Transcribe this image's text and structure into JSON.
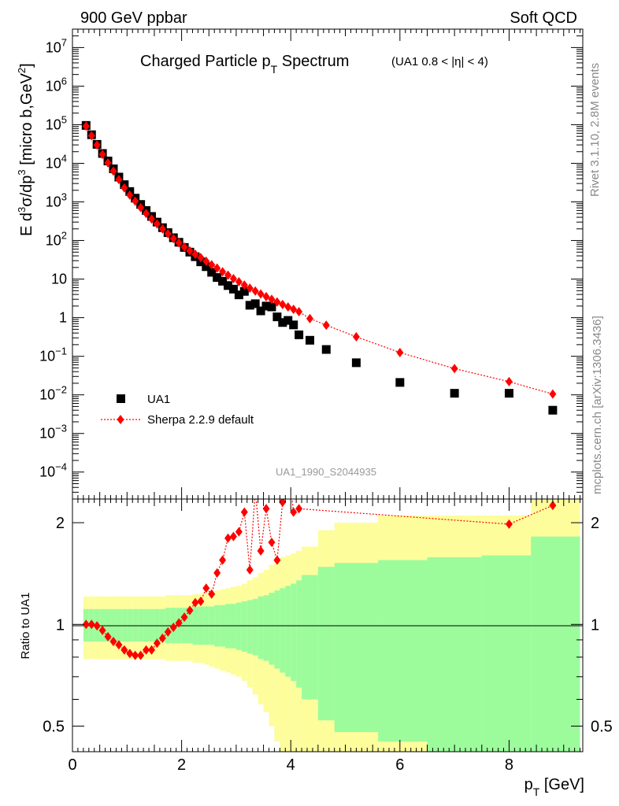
{
  "header": {
    "left": "900 GeV ppbar",
    "right": "Soft QCD"
  },
  "title": {
    "main": "Charged Particle p",
    "main_sub": "T",
    "main_tail": " Spectrum",
    "cut": "(UA1 0.8 < |η| < 4)"
  },
  "side": {
    "rivet": "Rivet 3.1.10,  2.8M events",
    "mcplots": "mcplots.cern.ch [arXiv:1306.3436]"
  },
  "watermark": "UA1_1990_S2044935",
  "legend": {
    "data": "UA1",
    "mc": "Sherpa 2.2.9 default"
  },
  "colors": {
    "data": "#000000",
    "mc": "#ff0000",
    "band_inner": "#9cfc9c",
    "band_outer": "#fdfd9c"
  },
  "chart_data": [
    {
      "type": "scatter",
      "title": "Charged Particle pT Spectrum",
      "ylabel": "E d³σ/dp³ [micro b,GeV²]",
      "yscale": "log",
      "xlim": [
        0,
        9.35
      ],
      "ylim": [
        2e-05,
        30000000.0
      ],
      "y_ticks": [
        "10⁴",
        "10³",
        "10²",
        "10¹",
        "1",
        "10",
        "10²",
        "10³",
        "10⁴",
        "10⁵",
        "10⁶",
        "10⁷"
      ],
      "legend_position": "left",
      "series": [
        {
          "name": "UA1",
          "marker": "square",
          "x": [
            0.25,
            0.35,
            0.45,
            0.55,
            0.65,
            0.75,
            0.85,
            0.95,
            1.05,
            1.15,
            1.25,
            1.35,
            1.45,
            1.55,
            1.65,
            1.75,
            1.85,
            1.95,
            2.05,
            2.15,
            2.25,
            2.35,
            2.45,
            2.55,
            2.65,
            2.75,
            2.85,
            2.95,
            3.05,
            3.15,
            3.25,
            3.35,
            3.45,
            3.55,
            3.65,
            3.75,
            3.85,
            3.95,
            4.05,
            4.15,
            4.35,
            4.65,
            5.2,
            6.0,
            7.0,
            8.0,
            8.8
          ],
          "y": [
            96000,
            55000,
            31000,
            18000,
            11500,
            7200,
            4400,
            2800,
            1860,
            1250,
            860,
            600,
            420,
            300,
            215,
            160,
            118,
            90,
            66,
            50,
            38,
            28,
            21,
            15,
            11,
            8.8,
            6.8,
            5.5,
            3.9,
            4.8,
            2.1,
            2.3,
            1.5,
            2.0,
            1.9,
            1.05,
            0.75,
            0.85,
            0.65,
            0.36,
            0.26,
            0.15,
            0.068,
            0.021,
            0.011,
            0.011,
            0.004
          ]
        },
        {
          "name": "Sherpa 2.2.9 default",
          "marker": "diamond",
          "x": [
            0.25,
            0.35,
            0.45,
            0.55,
            0.65,
            0.75,
            0.85,
            0.95,
            1.05,
            1.15,
            1.25,
            1.35,
            1.45,
            1.55,
            1.65,
            1.75,
            1.85,
            1.95,
            2.05,
            2.15,
            2.25,
            2.35,
            2.45,
            2.55,
            2.65,
            2.75,
            2.85,
            2.95,
            3.05,
            3.15,
            3.25,
            3.35,
            3.45,
            3.55,
            3.65,
            3.75,
            3.85,
            3.95,
            4.05,
            4.15,
            4.35,
            4.65,
            5.2,
            6.0,
            7.0,
            8.0,
            8.8
          ],
          "y": [
            92000,
            52000,
            30000,
            17000,
            10300,
            6300,
            3800,
            2300,
            1500,
            1050,
            710,
            500,
            360,
            270,
            200,
            150,
            112,
            87,
            68,
            54,
            44,
            36,
            29,
            23.5,
            19.2,
            15.5,
            12.6,
            10.3,
            8.5,
            7.0,
            5.8,
            4.9,
            4.1,
            3.5,
            3.0,
            2.55,
            2.2,
            1.9,
            1.65,
            1.43,
            0.95,
            0.64,
            0.32,
            0.125,
            0.048,
            0.022,
            0.0105
          ]
        }
      ]
    },
    {
      "type": "line",
      "ylabel": "Ratio to UA1",
      "xlabel": "p_T [GeV]",
      "x_ticks": [
        "0",
        "2",
        "4",
        "6",
        "8"
      ],
      "y_ticks": [
        "0.5",
        "1",
        "2"
      ],
      "yscale": "log",
      "xlim": [
        0,
        9.35
      ],
      "ylim": [
        0.42,
        2.35
      ],
      "series": [
        {
          "name": "Sherpa 2.2.9 default",
          "x": [
            0.25,
            0.35,
            0.45,
            0.55,
            0.65,
            0.75,
            0.85,
            0.95,
            1.05,
            1.15,
            1.25,
            1.35,
            1.45,
            1.55,
            1.65,
            1.75,
            1.85,
            1.95,
            2.05,
            2.15,
            2.25,
            2.35,
            2.45,
            2.55,
            2.65,
            2.75,
            2.85,
            2.95,
            3.05,
            3.15,
            3.25,
            3.35,
            3.45,
            3.55,
            3.65,
            3.75,
            3.85,
            3.95,
            4.05,
            4.15,
            8.0,
            8.8
          ],
          "y": [
            1.0,
            1.0,
            0.99,
            0.96,
            0.92,
            0.89,
            0.87,
            0.84,
            0.82,
            0.81,
            0.81,
            0.84,
            0.84,
            0.88,
            0.91,
            0.95,
            0.98,
            1.01,
            1.05,
            1.1,
            1.16,
            1.17,
            1.28,
            1.23,
            1.42,
            1.55,
            1.8,
            1.82,
            1.88,
            2.15,
            1.45,
            2.5,
            1.65,
            2.2,
            1.75,
            1.55,
            2.3,
            3.0,
            2.15,
            2.2,
            1.98,
            2.25
          ]
        }
      ],
      "uncertainty_bands": {
        "x_edges": [
          0.2,
          0.3,
          0.4,
          0.5,
          0.6,
          0.7,
          0.8,
          0.9,
          1.0,
          1.1,
          1.2,
          1.3,
          1.4,
          1.5,
          1.6,
          1.7,
          1.8,
          1.9,
          2.0,
          2.1,
          2.2,
          2.3,
          2.4,
          2.5,
          2.6,
          2.7,
          2.8,
          2.9,
          3.0,
          3.1,
          3.2,
          3.3,
          3.4,
          3.5,
          3.6,
          3.7,
          3.8,
          3.9,
          4.0,
          4.1,
          4.2,
          4.5,
          4.8,
          5.6,
          6.5,
          7.5,
          8.4,
          9.3
        ],
        "inner_half_width": [
          0.11,
          0.11,
          0.11,
          0.11,
          0.11,
          0.11,
          0.11,
          0.11,
          0.11,
          0.11,
          0.11,
          0.11,
          0.11,
          0.11,
          0.11,
          0.12,
          0.12,
          0.12,
          0.12,
          0.12,
          0.13,
          0.13,
          0.13,
          0.13,
          0.14,
          0.14,
          0.15,
          0.15,
          0.16,
          0.17,
          0.18,
          0.19,
          0.21,
          0.22,
          0.24,
          0.26,
          0.28,
          0.3,
          0.32,
          0.35,
          0.4,
          0.48,
          0.52,
          0.55,
          0.58,
          0.6,
          0.82
        ],
        "outer_half_width": [
          0.21,
          0.21,
          0.21,
          0.21,
          0.21,
          0.21,
          0.21,
          0.21,
          0.21,
          0.21,
          0.21,
          0.21,
          0.21,
          0.21,
          0.21,
          0.22,
          0.22,
          0.22,
          0.22,
          0.22,
          0.23,
          0.23,
          0.24,
          0.25,
          0.26,
          0.27,
          0.28,
          0.29,
          0.3,
          0.32,
          0.35,
          0.38,
          0.42,
          0.45,
          0.5,
          0.55,
          0.58,
          0.6,
          0.62,
          0.65,
          0.7,
          0.9,
          1.0,
          1.1,
          1.1,
          1.1,
          1.35
        ]
      }
    }
  ]
}
